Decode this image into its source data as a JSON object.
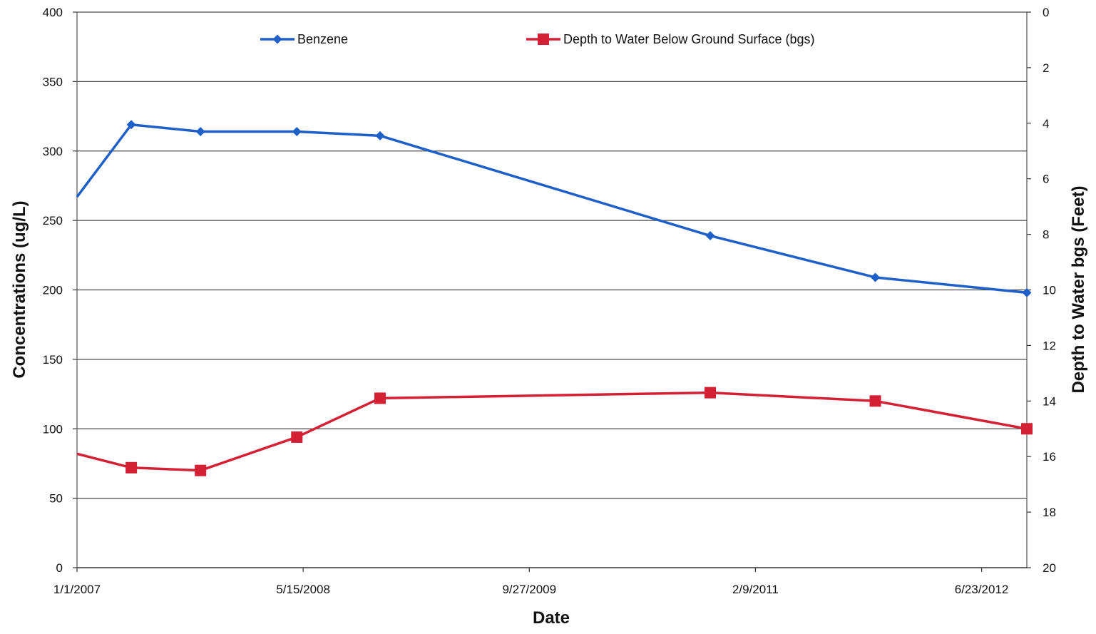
{
  "chart_data": {
    "type": "line",
    "xlabel": "Date",
    "ylabel_left": "Concentrations (ug/L)",
    "ylabel_right": "Depth to Water bgs (Feet)",
    "x_range": [
      "2007-01-01",
      "2012-10-01"
    ],
    "x_ticks": [
      {
        "date": "2007-01-01",
        "label": "1/1/2007"
      },
      {
        "date": "2008-05-15",
        "label": "5/15/2008"
      },
      {
        "date": "2009-09-27",
        "label": "9/27/2009"
      },
      {
        "date": "2011-02-09",
        "label": "2/9/2011"
      },
      {
        "date": "2012-06-23",
        "label": "6/23/2012"
      }
    ],
    "y_left": {
      "min": 0,
      "max": 400,
      "ticks": [
        0,
        50,
        100,
        150,
        200,
        250,
        300,
        350,
        400
      ]
    },
    "y_right": {
      "min": 0,
      "max": 20,
      "reversed": true,
      "ticks": [
        0,
        2,
        4,
        6,
        8,
        10,
        12,
        14,
        16,
        18,
        20
      ]
    },
    "grid": "horizontal",
    "legend_position": "top",
    "series": [
      {
        "name": "Benzene",
        "axis": "left",
        "color": "#1f5fc8",
        "marker": "diamond",
        "points": [
          {
            "date": "2007-01-01",
            "value": 267
          },
          {
            "date": "2007-05-01",
            "value": 319
          },
          {
            "date": "2007-10-01",
            "value": 314
          },
          {
            "date": "2008-05-01",
            "value": 314
          },
          {
            "date": "2008-11-01",
            "value": 311
          },
          {
            "date": "2010-11-01",
            "value": 239
          },
          {
            "date": "2011-11-01",
            "value": 209
          },
          {
            "date": "2012-10-01",
            "value": 198
          }
        ]
      },
      {
        "name": "Depth to Water Below Ground Surface (bgs)",
        "axis": "right",
        "color": "#d42035",
        "marker": "square",
        "points": [
          {
            "date": "2007-01-01",
            "value": 15.9
          },
          {
            "date": "2007-05-01",
            "value": 16.4
          },
          {
            "date": "2007-10-01",
            "value": 16.5
          },
          {
            "date": "2008-05-01",
            "value": 15.3
          },
          {
            "date": "2008-11-01",
            "value": 13.9
          },
          {
            "date": "2010-11-01",
            "value": 13.7
          },
          {
            "date": "2011-11-01",
            "value": 14.0
          },
          {
            "date": "2012-10-01",
            "value": 15.0
          }
        ]
      }
    ]
  }
}
